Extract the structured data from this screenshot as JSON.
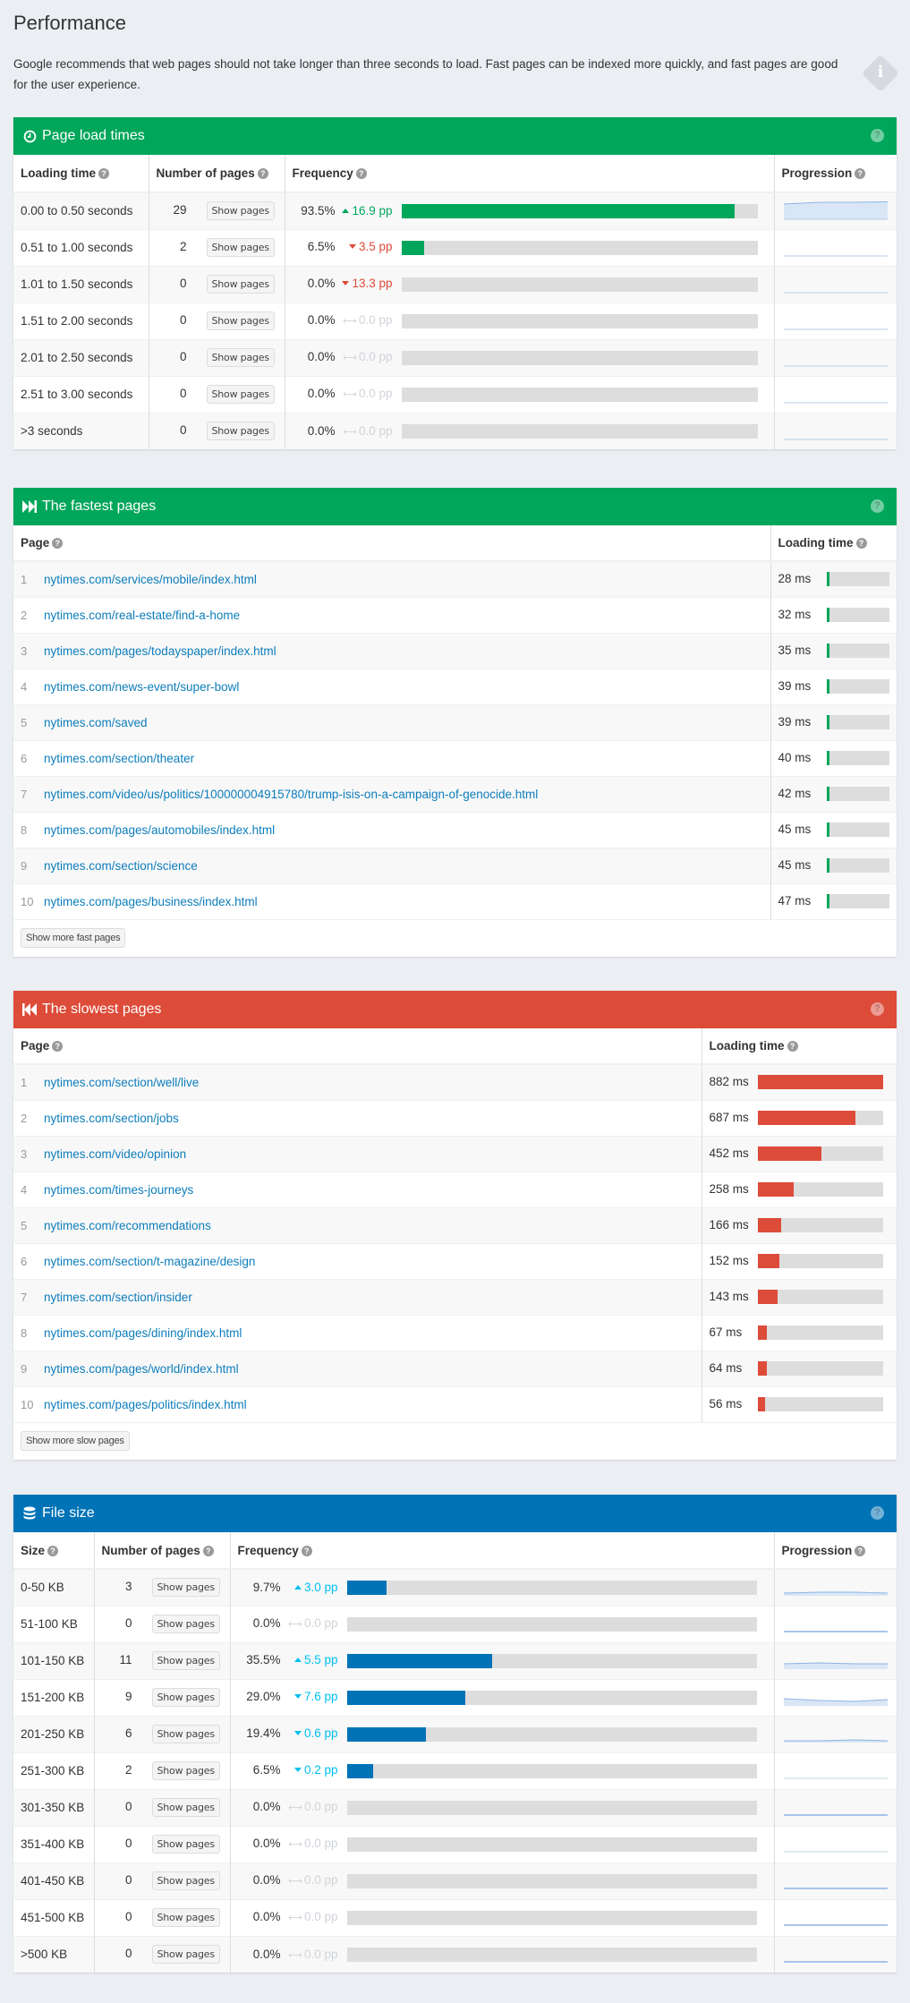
{
  "page": {
    "title": "Performance",
    "intro": "Google recommends that web pages should not take longer than three seconds to load. Fast pages can be indexed more quickly, and fast pages are good for the user experience.",
    "info_icon": "i"
  },
  "colors": {
    "green": "#00a65a",
    "red": "#dd4b39",
    "blue": "#0073b7",
    "cyan": "#00c0ef",
    "bar_bg": "#dddddd",
    "link": "#0d7dbb"
  },
  "load_times": {
    "title": "Page load times",
    "icon": "clock-icon",
    "help": "?",
    "columns": [
      "Loading time",
      "Number of pages",
      "Frequency",
      "Progression"
    ],
    "show_pages_label": "Show pages",
    "rows": [
      {
        "range": "0.00 to 0.50 seconds",
        "count": "29",
        "pct": "93.5%",
        "pct_value": 93.5,
        "delta": "16.9 pp",
        "trend": "up"
      },
      {
        "range": "0.51 to 1.00 seconds",
        "count": "2",
        "pct": "6.5%",
        "pct_value": 6.5,
        "delta": "3.5 pp",
        "trend": "down"
      },
      {
        "range": "1.01 to 1.50 seconds",
        "count": "0",
        "pct": "0.0%",
        "pct_value": 0,
        "delta": "13.3 pp",
        "trend": "down"
      },
      {
        "range": "1.51 to 2.00 seconds",
        "count": "0",
        "pct": "0.0%",
        "pct_value": 0,
        "delta": "0.0 pp",
        "trend": "flat"
      },
      {
        "range": "2.01 to 2.50 seconds",
        "count": "0",
        "pct": "0.0%",
        "pct_value": 0,
        "delta": "0.0 pp",
        "trend": "flat"
      },
      {
        "range": "2.51 to 3.00 seconds",
        "count": "0",
        "pct": "0.0%",
        "pct_value": 0,
        "delta": "0.0 pp",
        "trend": "flat"
      },
      {
        "range": ">3 seconds",
        "count": "0",
        "pct": "0.0%",
        "pct_value": 0,
        "delta": "0.0 pp",
        "trend": "flat"
      }
    ]
  },
  "fastest": {
    "title": "The fastest pages",
    "icon": "fast-forward-icon",
    "help": "?",
    "columns": [
      "Page",
      "Loading time"
    ],
    "max_ms": 882,
    "rows": [
      {
        "rank": "1",
        "url": "nytimes.com/services/mobile/index.html",
        "time": "28 ms",
        "ms": 28
      },
      {
        "rank": "2",
        "url": "nytimes.com/real-estate/find-a-home",
        "time": "32 ms",
        "ms": 32
      },
      {
        "rank": "3",
        "url": "nytimes.com/pages/todayspaper/index.html",
        "time": "35 ms",
        "ms": 35
      },
      {
        "rank": "4",
        "url": "nytimes.com/news-event/super-bowl",
        "time": "39 ms",
        "ms": 39
      },
      {
        "rank": "5",
        "url": "nytimes.com/saved",
        "time": "39 ms",
        "ms": 39
      },
      {
        "rank": "6",
        "url": "nytimes.com/section/theater",
        "time": "40 ms",
        "ms": 40
      },
      {
        "rank": "7",
        "url": "nytimes.com/video/us/politics/100000004915780/trump-isis-on-a-campaign-of-genocide.html",
        "time": "42 ms",
        "ms": 42
      },
      {
        "rank": "8",
        "url": "nytimes.com/pages/automobiles/index.html",
        "time": "45 ms",
        "ms": 45
      },
      {
        "rank": "9",
        "url": "nytimes.com/section/science",
        "time": "45 ms",
        "ms": 45
      },
      {
        "rank": "10",
        "url": "nytimes.com/pages/business/index.html",
        "time": "47 ms",
        "ms": 47
      }
    ],
    "more_label": "Show more fast pages"
  },
  "slowest": {
    "title": "The slowest pages",
    "icon": "fast-backward-icon",
    "help": "?",
    "columns": [
      "Page",
      "Loading time"
    ],
    "max_ms": 882,
    "rows": [
      {
        "rank": "1",
        "url": "nytimes.com/section/well/live",
        "time": "882 ms",
        "ms": 882
      },
      {
        "rank": "2",
        "url": "nytimes.com/section/jobs",
        "time": "687 ms",
        "ms": 687
      },
      {
        "rank": "3",
        "url": "nytimes.com/video/opinion",
        "time": "452 ms",
        "ms": 452
      },
      {
        "rank": "4",
        "url": "nytimes.com/times-journeys",
        "time": "258 ms",
        "ms": 258
      },
      {
        "rank": "5",
        "url": "nytimes.com/recommendations",
        "time": "166 ms",
        "ms": 166
      },
      {
        "rank": "6",
        "url": "nytimes.com/section/t-magazine/design",
        "time": "152 ms",
        "ms": 152
      },
      {
        "rank": "7",
        "url": "nytimes.com/section/insider",
        "time": "143 ms",
        "ms": 143
      },
      {
        "rank": "8",
        "url": "nytimes.com/pages/dining/index.html",
        "time": "67 ms",
        "ms": 67
      },
      {
        "rank": "9",
        "url": "nytimes.com/pages/world/index.html",
        "time": "64 ms",
        "ms": 64
      },
      {
        "rank": "10",
        "url": "nytimes.com/pages/politics/index.html",
        "time": "56 ms",
        "ms": 56
      }
    ],
    "more_label": "Show more slow pages"
  },
  "file_size": {
    "title": "File size",
    "icon": "database-icon",
    "help": "?",
    "columns": [
      "Size",
      "Number of pages",
      "Frequency",
      "Progression"
    ],
    "show_pages_label": "Show pages",
    "rows": [
      {
        "range": "0-50 KB",
        "count": "3",
        "pct": "9.7%",
        "pct_value": 9.7,
        "delta": "3.0 pp",
        "trend": "up"
      },
      {
        "range": "51-100 KB",
        "count": "0",
        "pct": "0.0%",
        "pct_value": 0,
        "delta": "0.0 pp",
        "trend": "flat"
      },
      {
        "range": "101-150 KB",
        "count": "11",
        "pct": "35.5%",
        "pct_value": 35.5,
        "delta": "5.5 pp",
        "trend": "up"
      },
      {
        "range": "151-200 KB",
        "count": "9",
        "pct": "29.0%",
        "pct_value": 29.0,
        "delta": "7.6 pp",
        "trend": "down"
      },
      {
        "range": "201-250 KB",
        "count": "6",
        "pct": "19.4%",
        "pct_value": 19.4,
        "delta": "0.6 pp",
        "trend": "down"
      },
      {
        "range": "251-300 KB",
        "count": "2",
        "pct": "6.5%",
        "pct_value": 6.5,
        "delta": "0.2 pp",
        "trend": "down"
      },
      {
        "range": "301-350 KB",
        "count": "0",
        "pct": "0.0%",
        "pct_value": 0,
        "delta": "0.0 pp",
        "trend": "flat"
      },
      {
        "range": "351-400 KB",
        "count": "0",
        "pct": "0.0%",
        "pct_value": 0,
        "delta": "0.0 pp",
        "trend": "flat"
      },
      {
        "range": "401-450 KB",
        "count": "0",
        "pct": "0.0%",
        "pct_value": 0,
        "delta": "0.0 pp",
        "trend": "flat"
      },
      {
        "range": "451-500 KB",
        "count": "0",
        "pct": "0.0%",
        "pct_value": 0,
        "delta": "0.0 pp",
        "trend": "flat"
      },
      {
        "range": ">500 KB",
        "count": "0",
        "pct": "0.0%",
        "pct_value": 0,
        "delta": "0.0 pp",
        "trend": "flat"
      }
    ]
  }
}
